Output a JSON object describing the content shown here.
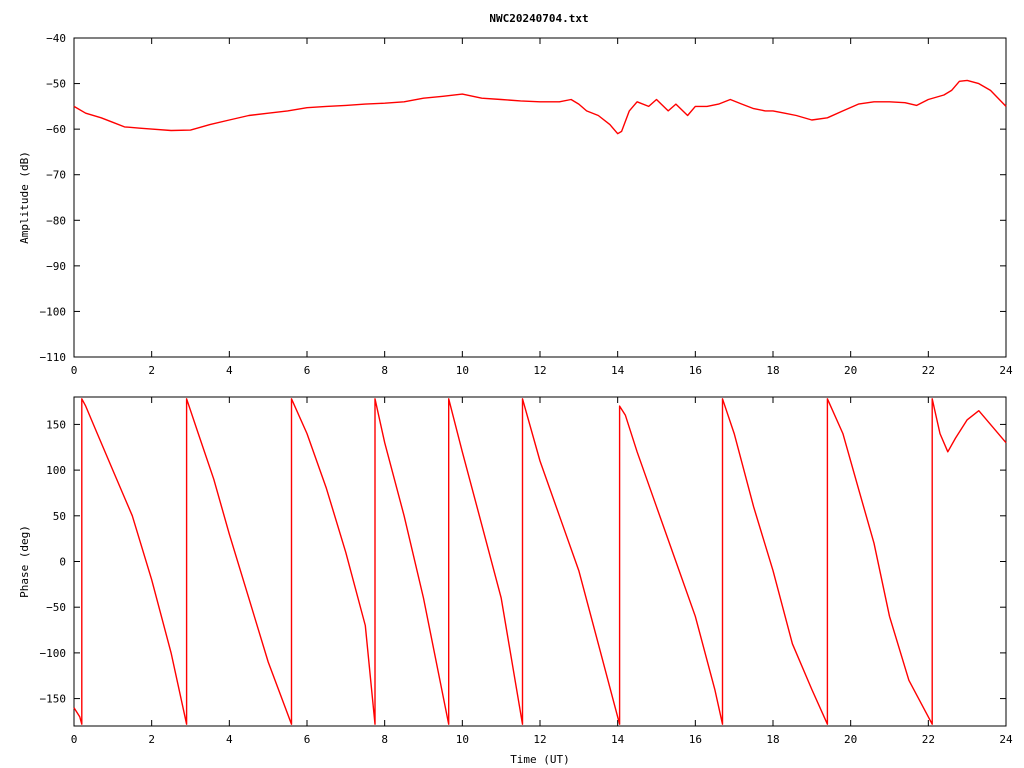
{
  "chart_data": [
    {
      "type": "line",
      "title": "NWC20240704.txt",
      "xlabel": "",
      "ylabel": "Amplitude (dB)",
      "xlim": [
        0,
        24
      ],
      "ylim": [
        -110,
        -40
      ],
      "xticks": [
        0,
        2,
        4,
        6,
        8,
        10,
        12,
        14,
        16,
        18,
        20,
        22,
        24
      ],
      "yticks": [
        -110,
        -100,
        -90,
        -80,
        -70,
        -60,
        -50,
        -40
      ],
      "grid": false,
      "series": [
        {
          "color": "#ff0000",
          "x": [
            0,
            0.3,
            0.7,
            1.0,
            1.3,
            1.7,
            2.0,
            2.5,
            3.0,
            3.5,
            4.0,
            4.5,
            5.0,
            5.5,
            6.0,
            6.5,
            7.0,
            7.5,
            8.0,
            8.5,
            9.0,
            9.5,
            10.0,
            10.5,
            11.0,
            11.5,
            12.0,
            12.5,
            12.8,
            13.0,
            13.2,
            13.5,
            13.8,
            14.0,
            14.1,
            14.3,
            14.5,
            14.8,
            15.0,
            15.3,
            15.5,
            15.8,
            16.0,
            16.3,
            16.6,
            16.9,
            17.2,
            17.5,
            17.8,
            18.0,
            18.3,
            18.6,
            19.0,
            19.4,
            19.8,
            20.2,
            20.6,
            21.0,
            21.4,
            21.7,
            22.0,
            22.4,
            22.6,
            22.8,
            23.0,
            23.3,
            23.6,
            24.0
          ],
          "y": [
            -55,
            -56.5,
            -57.5,
            -58.5,
            -59.5,
            -59.8,
            -60,
            -60.3,
            -60.2,
            -59,
            -58,
            -57,
            -56.5,
            -56,
            -55.3,
            -55,
            -54.8,
            -54.5,
            -54.3,
            -54,
            -53.2,
            -52.8,
            -52.3,
            -53.2,
            -53.5,
            -53.8,
            -54,
            -54,
            -53.5,
            -54.5,
            -56,
            -57,
            -59,
            -61,
            -60.5,
            -56,
            -54,
            -55,
            -53.5,
            -56,
            -54.5,
            -57,
            -55,
            -55,
            -54.5,
            -53.5,
            -54.5,
            -55.5,
            -56,
            -56,
            -56.5,
            -57,
            -58,
            -57.5,
            -56,
            -54.5,
            -54,
            -54,
            -54.2,
            -54.8,
            -53.5,
            -52.5,
            -51.5,
            -49.5,
            -49.3,
            -50,
            -51.5,
            -55
          ]
        }
      ]
    },
    {
      "type": "line",
      "title": "",
      "xlabel": "Time (UT)",
      "ylabel": "Phase (deg)",
      "xlim": [
        0,
        24
      ],
      "ylim": [
        -180,
        180
      ],
      "xticks": [
        0,
        2,
        4,
        6,
        8,
        10,
        12,
        14,
        16,
        18,
        20,
        22,
        24
      ],
      "yticks": [
        -150,
        -100,
        -50,
        0,
        50,
        100,
        150
      ],
      "grid": false,
      "series": [
        {
          "color": "#ff0000",
          "x": [
            0,
            0.15,
            0.2,
            0.2,
            0.3,
            0.6,
            1.0,
            1.5,
            2.0,
            2.5,
            2.9,
            2.9,
            3.2,
            3.6,
            4.0,
            4.5,
            5.0,
            5.6,
            5.6,
            6.0,
            6.5,
            7.0,
            7.5,
            7.75,
            7.75,
            8.0,
            8.5,
            9.0,
            9.65,
            9.65,
            10.0,
            10.5,
            11.0,
            11.55,
            11.55,
            12.0,
            12.5,
            13.0,
            13.5,
            14.05,
            14.05,
            14.2,
            14.5,
            15.0,
            15.5,
            16.0,
            16.5,
            16.7,
            16.7,
            17.0,
            17.5,
            18.0,
            18.5,
            19.0,
            19.4,
            19.4,
            19.8,
            20.2,
            20.6,
            21.0,
            21.5,
            22.1,
            22.1,
            22.3,
            22.5,
            22.7,
            23.0,
            23.3,
            23.6,
            24.0
          ],
          "y": [
            -160,
            -170,
            -178,
            178,
            170,
            140,
            100,
            50,
            -20,
            -100,
            -178,
            178,
            140,
            90,
            30,
            -40,
            -110,
            -178,
            178,
            140,
            80,
            10,
            -70,
            -178,
            178,
            130,
            50,
            -40,
            -178,
            178,
            120,
            40,
            -40,
            -178,
            178,
            110,
            50,
            -10,
            -90,
            -178,
            170,
            160,
            120,
            60,
            0,
            -60,
            -140,
            -178,
            178,
            140,
            60,
            -10,
            -90,
            -140,
            -178,
            178,
            140,
            80,
            20,
            -60,
            -130,
            -178,
            178,
            140,
            120,
            135,
            155,
            165,
            150,
            130
          ]
        }
      ]
    }
  ]
}
